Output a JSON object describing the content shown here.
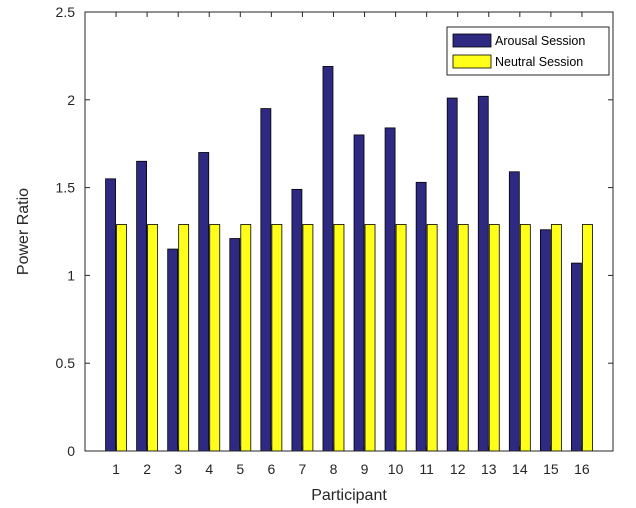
{
  "chart_data": {
    "type": "bar",
    "xlabel": "Participant",
    "ylabel": "Power Ratio",
    "categories": [
      "1",
      "2",
      "3",
      "4",
      "5",
      "6",
      "7",
      "8",
      "9",
      "10",
      "11",
      "12",
      "13",
      "14",
      "15",
      "16"
    ],
    "ylim": [
      0,
      2.5
    ],
    "yticks": [
      "0",
      "0.5",
      "1",
      "1.5",
      "2",
      "2.5"
    ],
    "grid": false,
    "legend_position": "top-right",
    "series": [
      {
        "name": "Arousal Session",
        "color": "#2e2a82",
        "values": [
          1.55,
          1.65,
          1.15,
          1.7,
          1.21,
          1.95,
          1.49,
          2.19,
          1.8,
          1.84,
          1.53,
          2.01,
          2.02,
          1.59,
          1.26,
          1.07
        ]
      },
      {
        "name": "Neutral Session",
        "color": "#ffff1a",
        "values": [
          1.29,
          1.29,
          1.29,
          1.29,
          1.29,
          1.29,
          1.29,
          1.29,
          1.29,
          1.29,
          1.29,
          1.29,
          1.29,
          1.29,
          1.29,
          1.29
        ]
      }
    ]
  }
}
